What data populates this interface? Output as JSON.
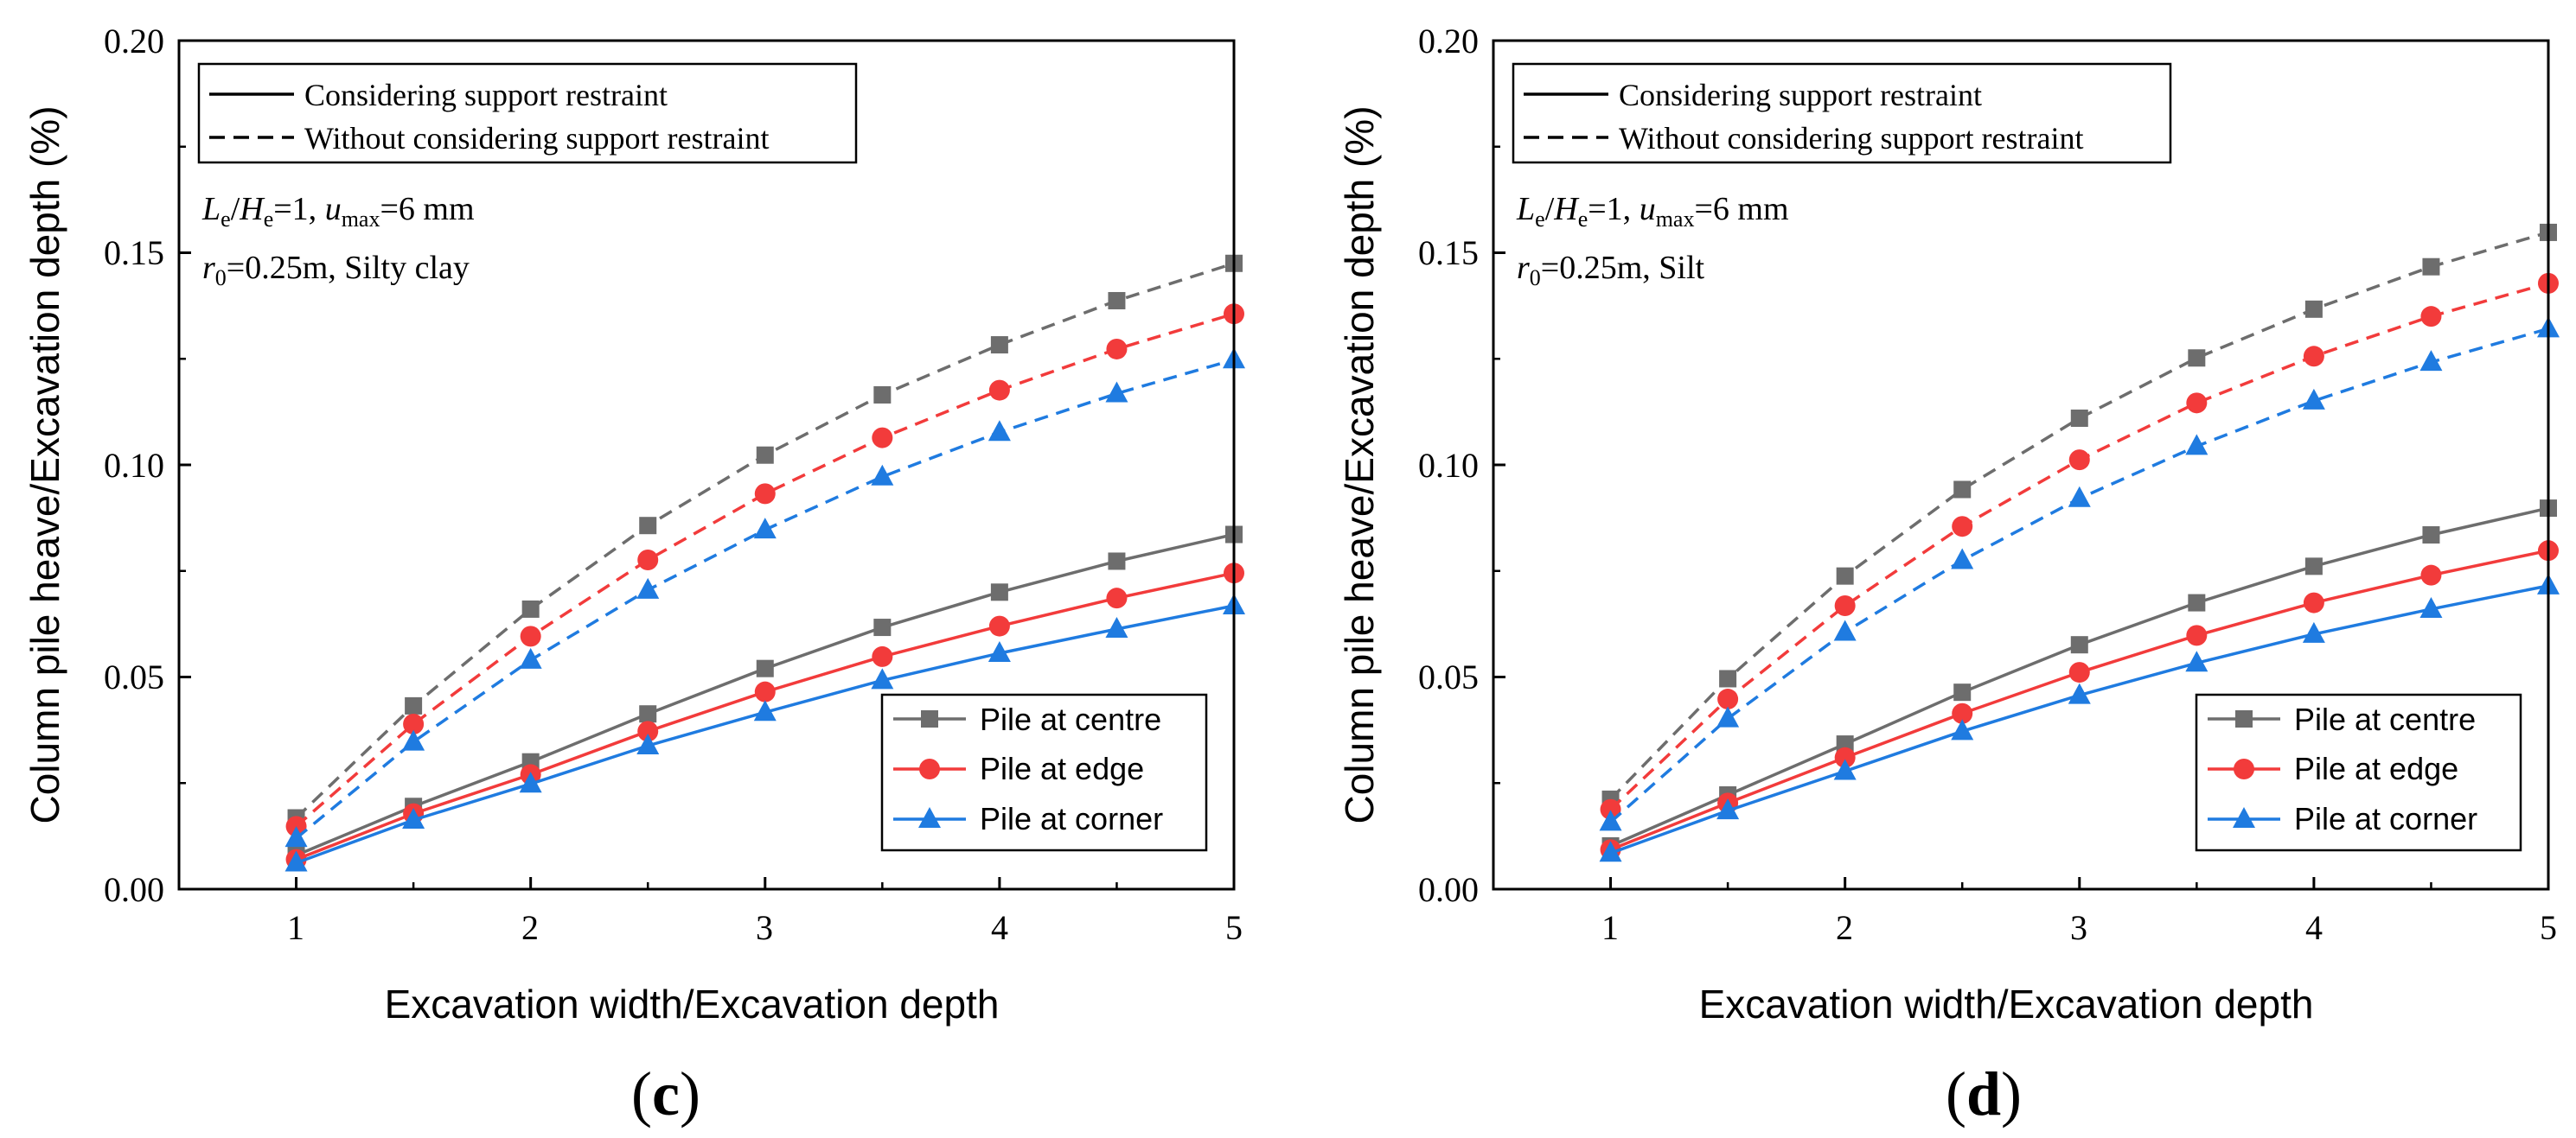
{
  "chart_data": [
    {
      "type": "line",
      "panel_label": "c",
      "xlabel": "Excavation width/Excavation depth",
      "ylabel": "Column pile heave/Excavation depth (%)",
      "xlim": [
        0.5,
        5
      ],
      "ylim": [
        0,
        0.2
      ],
      "xticks": [
        "1",
        "2",
        "3",
        "4",
        "5"
      ],
      "yticks": [
        "0.00",
        "0.05",
        "0.10",
        "0.15",
        "0.20"
      ],
      "x": [
        1,
        1.5,
        2,
        2.5,
        3,
        3.5,
        4,
        4.5,
        5
      ],
      "annotation": {
        "line1": {
          "L": "L",
          "L_sub": "e",
          "slash": "/",
          "H": "H",
          "H_sub": "e",
          "eq1": "=1, ",
          "u": "u",
          "u_sub": "max",
          "eq2": "=6 mm"
        },
        "line2": {
          "r": "r",
          "r_sub": "0",
          "rest": "=0.25m, Silty clay"
        }
      },
      "style_legend": [
        {
          "label": "Considering support restraint",
          "dash": "solid"
        },
        {
          "label": "Without considering support restraint",
          "dash": "dashed"
        }
      ],
      "legend": [
        {
          "label": "Pile at centre",
          "marker": "square",
          "color": "#6d6d6d"
        },
        {
          "label": "Pile at edge",
          "marker": "circle",
          "color": "#f23b3b"
        },
        {
          "label": "Pile at corner",
          "marker": "triangle",
          "color": "#1f7be0"
        }
      ],
      "series": [
        {
          "name": "Pile at centre",
          "restraint": "Considering support restraint",
          "dash": "solid",
          "color": "#6d6d6d",
          "marker": "square",
          "values": [
            0.008,
            0.0195,
            0.03,
            0.0413,
            0.052,
            0.0617,
            0.07,
            0.0773,
            0.0836
          ]
        },
        {
          "name": "Pile at edge",
          "restraint": "Considering support restraint",
          "dash": "solid",
          "color": "#f23b3b",
          "marker": "circle",
          "values": [
            0.007,
            0.0178,
            0.027,
            0.0372,
            0.0465,
            0.0548,
            0.062,
            0.0686,
            0.0745
          ]
        },
        {
          "name": "Pile at corner",
          "restraint": "Considering support restraint",
          "dash": "solid",
          "color": "#1f7be0",
          "marker": "triangle",
          "values": [
            0.0062,
            0.0163,
            0.0248,
            0.0338,
            0.0417,
            0.0492,
            0.0556,
            0.0613,
            0.0668
          ]
        },
        {
          "name": "Pile at centre",
          "restraint": "Without considering support restraint",
          "dash": "dashed",
          "color": "#6d6d6d",
          "marker": "square",
          "values": [
            0.0168,
            0.0432,
            0.066,
            0.0857,
            0.1023,
            0.1165,
            0.1283,
            0.1387,
            0.1475
          ]
        },
        {
          "name": "Pile at edge",
          "restraint": "Without considering support restraint",
          "dash": "dashed",
          "color": "#f23b3b",
          "marker": "circle",
          "values": [
            0.0148,
            0.0389,
            0.0596,
            0.0776,
            0.0932,
            0.1064,
            0.1176,
            0.1273,
            0.1356
          ]
        },
        {
          "name": "Pile at corner",
          "restraint": "Without considering support restraint",
          "dash": "dashed",
          "color": "#1f7be0",
          "marker": "triangle",
          "values": [
            0.012,
            0.0347,
            0.054,
            0.0705,
            0.0847,
            0.0972,
            0.1077,
            0.1168,
            0.1248
          ]
        }
      ]
    },
    {
      "type": "line",
      "panel_label": "d",
      "xlabel": "Excavation width/Excavation depth",
      "ylabel": "Column pile heave/Excavation depth (%)",
      "xlim": [
        0.5,
        5
      ],
      "ylim": [
        0,
        0.2
      ],
      "xticks": [
        "1",
        "2",
        "3",
        "4",
        "5"
      ],
      "yticks": [
        "0.00",
        "0.05",
        "0.10",
        "0.15",
        "0.20"
      ],
      "x": [
        1,
        1.5,
        2,
        2.5,
        3,
        3.5,
        4,
        4.5,
        5
      ],
      "annotation": {
        "line1": {
          "L": "L",
          "L_sub": "e",
          "slash": "/",
          "H": "H",
          "H_sub": "e",
          "eq1": "=1, ",
          "u": "u",
          "u_sub": "max",
          "eq2": "=6 mm"
        },
        "line2": {
          "r": "r",
          "r_sub": "0",
          "rest": "=0.25m, Silt"
        }
      },
      "style_legend": [
        {
          "label": "Considering support restraint",
          "dash": "solid"
        },
        {
          "label": "Without considering support restraint",
          "dash": "dashed"
        }
      ],
      "legend": [
        {
          "label": "Pile at centre",
          "marker": "square",
          "color": "#6d6d6d"
        },
        {
          "label": "Pile at edge",
          "marker": "circle",
          "color": "#f23b3b"
        },
        {
          "label": "Pile at corner",
          "marker": "triangle",
          "color": "#1f7be0"
        }
      ],
      "series": [
        {
          "name": "Pile at centre",
          "restraint": "Considering support restraint",
          "dash": "solid",
          "color": "#6d6d6d",
          "marker": "square",
          "values": [
            0.0102,
            0.0222,
            0.0342,
            0.0464,
            0.0576,
            0.0675,
            0.0761,
            0.0835,
            0.0898
          ]
        },
        {
          "name": "Pile at edge",
          "restraint": "Considering support restraint",
          "dash": "solid",
          "color": "#f23b3b",
          "marker": "circle",
          "values": [
            0.0093,
            0.0203,
            0.031,
            0.0414,
            0.0511,
            0.0598,
            0.0675,
            0.074,
            0.0798
          ]
        },
        {
          "name": "Pile at corner",
          "restraint": "Considering support restraint",
          "dash": "solid",
          "color": "#1f7be0",
          "marker": "triangle",
          "values": [
            0.0085,
            0.0185,
            0.0278,
            0.0372,
            0.0457,
            0.0533,
            0.0601,
            0.066,
            0.0715
          ]
        },
        {
          "name": "Pile at centre",
          "restraint": "Without considering support restraint",
          "dash": "dashed",
          "color": "#6d6d6d",
          "marker": "square",
          "values": [
            0.0212,
            0.0496,
            0.0738,
            0.0942,
            0.111,
            0.1252,
            0.1367,
            0.1467,
            0.1548
          ]
        },
        {
          "name": "Pile at edge",
          "restraint": "Without considering support restraint",
          "dash": "dashed",
          "color": "#f23b3b",
          "marker": "circle",
          "values": [
            0.0188,
            0.0448,
            0.0668,
            0.0855,
            0.1012,
            0.1146,
            0.1256,
            0.135,
            0.1428
          ]
        },
        {
          "name": "Pile at corner",
          "restraint": "Without considering support restraint",
          "dash": "dashed",
          "color": "#1f7be0",
          "marker": "triangle",
          "values": [
            0.0158,
            0.0402,
            0.0606,
            0.0775,
            0.0921,
            0.1044,
            0.1151,
            0.1242,
            0.1321
          ]
        }
      ]
    }
  ]
}
